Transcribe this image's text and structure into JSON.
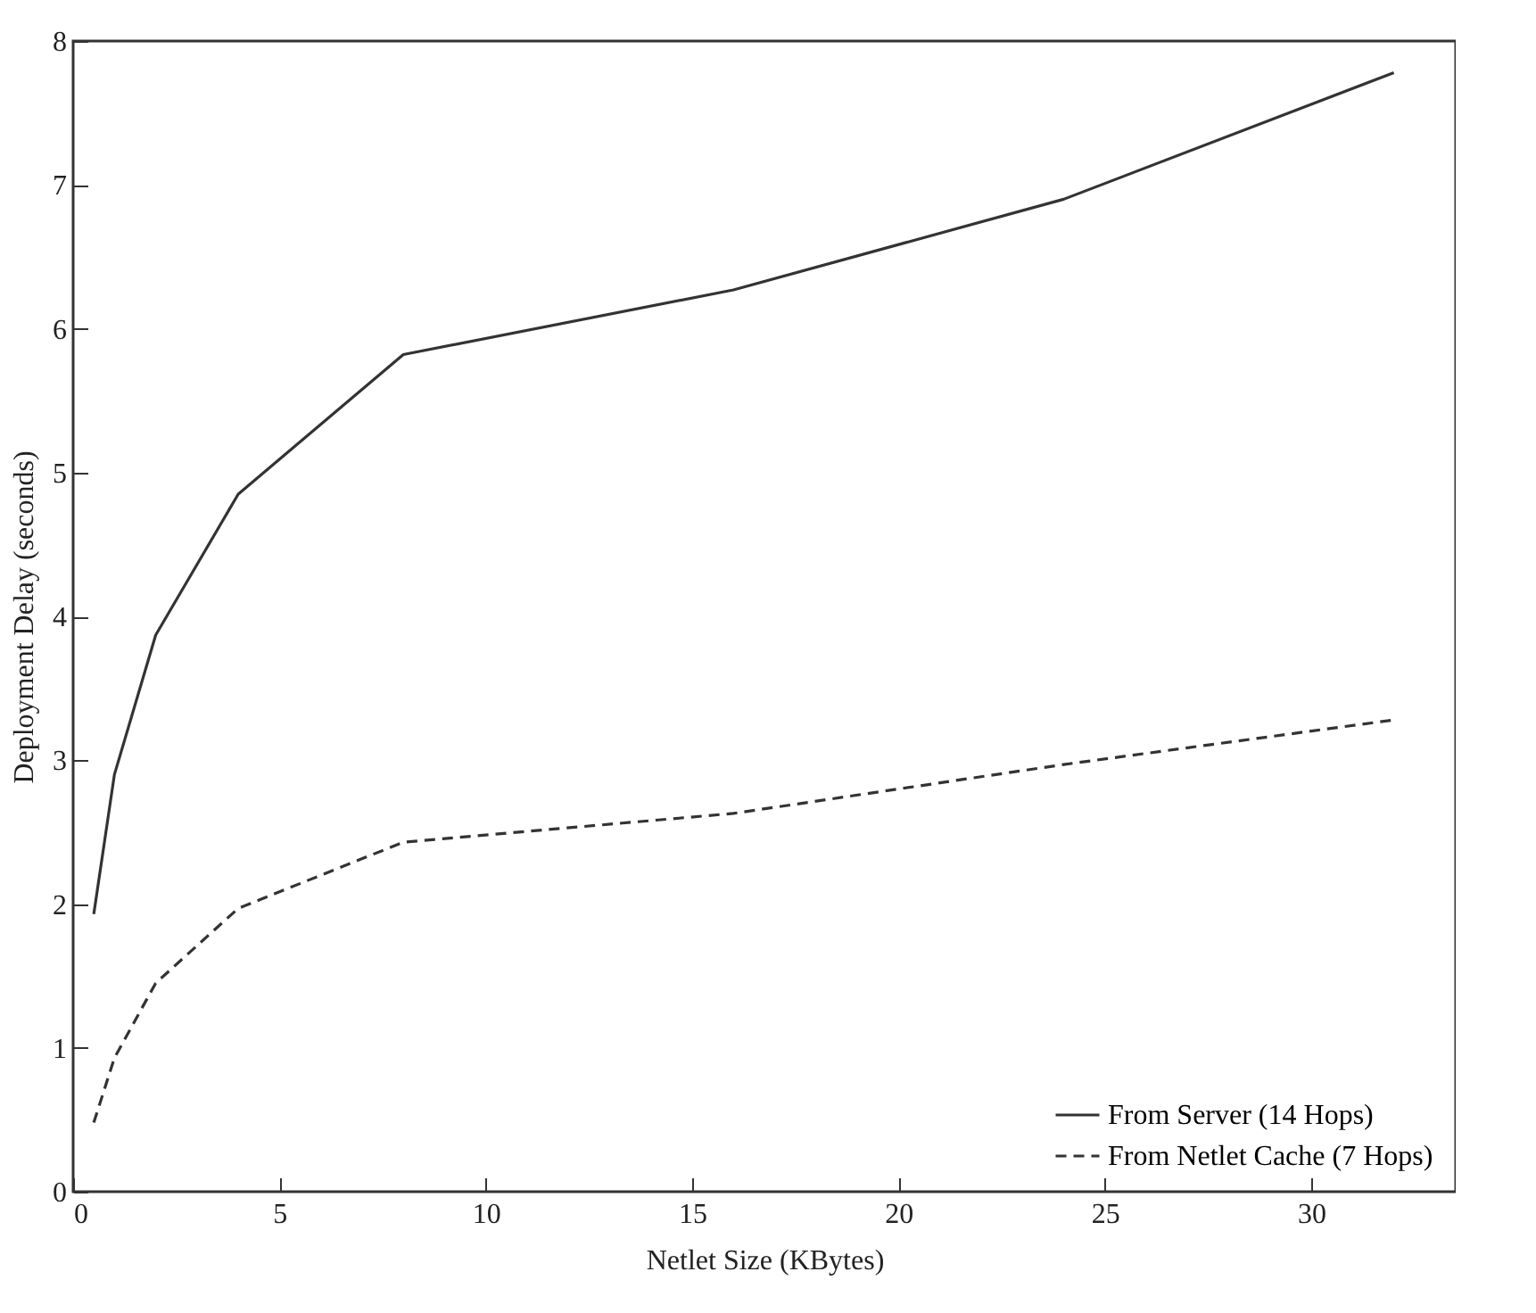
{
  "chart_data": {
    "type": "line",
    "xlabel": "Netlet Size (KBytes)",
    "ylabel": "Deployment Delay (seconds)",
    "x": [
      0.5,
      1,
      2,
      4,
      8,
      16,
      24,
      32
    ],
    "series": [
      {
        "name": "From Server (14 Hops)",
        "color": "#333333",
        "line_style": "solid",
        "values": [
          1.93,
          2.9,
          3.87,
          4.85,
          5.82,
          6.27,
          6.9,
          7.78
        ]
      },
      {
        "name": "From Netlet Cache (7 Hops)",
        "color": "#333333",
        "line_style": "dashed",
        "values": [
          0.48,
          0.93,
          1.45,
          1.97,
          2.43,
          2.63,
          2.97,
          3.28
        ]
      }
    ],
    "xlim": [
      0,
      33.5
    ],
    "xticks": [
      0,
      5,
      10,
      15,
      20,
      25,
      30
    ],
    "ylim": [
      0,
      8
    ],
    "yticks": [
      0,
      1,
      2,
      3,
      4,
      5,
      6,
      7,
      8
    ],
    "grid": false,
    "legend": "bottom right",
    "marker": "none"
  }
}
